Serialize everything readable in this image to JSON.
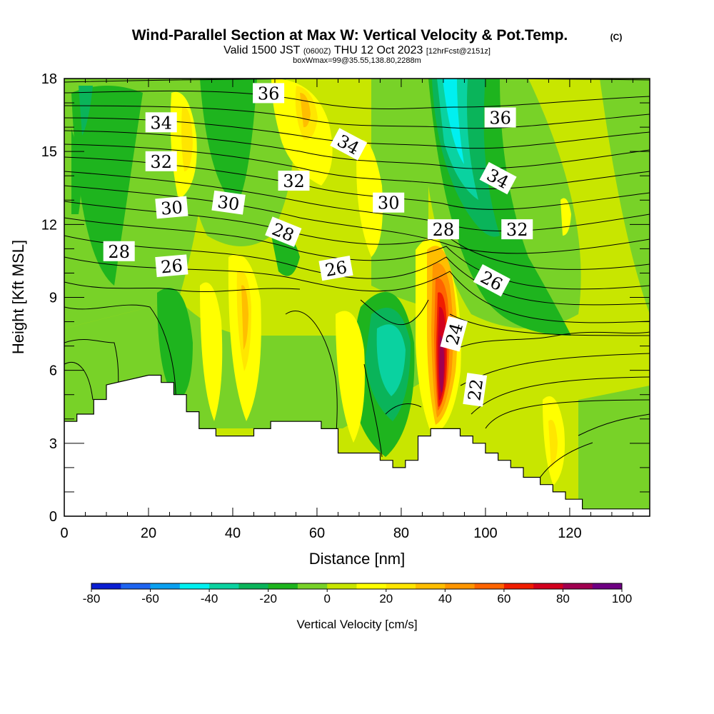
{
  "chart_data": {
    "type": "heatmap",
    "title": "Wind-Parallel Section at Max W: Vertical Velocity & Pot.Temp.",
    "title_mark": "(C)",
    "subtitle_main": "Valid 1500 JST",
    "subtitle_utc": "(0600Z)",
    "subtitle_date": "THU 12 Oct 2023",
    "subtitle_fcst": "[12hrFcst@2151z]",
    "subtitle2": "boxWmax=99@35.55,138.80,2288m",
    "xlabel": "Distance [nm]",
    "ylabel": "Height [Kft MSL]",
    "xlim": [
      0,
      139
    ],
    "ylim": [
      0,
      18
    ],
    "x_ticks": [
      "0",
      "20",
      "40",
      "60",
      "80",
      "100",
      "120"
    ],
    "y_ticks": [
      "0",
      "3",
      "6",
      "9",
      "12",
      "15",
      "18"
    ],
    "colorbar": {
      "label": "Vertical Velocity [cm/s]",
      "ticks": [
        "-80",
        "-60",
        "-40",
        "-20",
        "0",
        "20",
        "40",
        "60",
        "80",
        "100"
      ],
      "bins": [
        -80,
        -70,
        -60,
        -50,
        -40,
        -30,
        -20,
        -10,
        0,
        10,
        20,
        30,
        40,
        50,
        60,
        70,
        80,
        90,
        100
      ],
      "colors": [
        "#0a1ed2",
        "#1e64f0",
        "#0aa0f0",
        "#00f0f0",
        "#0ad2a0",
        "#0ab45a",
        "#1eb41e",
        "#78d228",
        "#c8e600",
        "#ffff00",
        "#ffe600",
        "#ffbe00",
        "#ff9600",
        "#ff6400",
        "#f01e00",
        "#d2001e",
        "#a00050",
        "#6e0082"
      ]
    },
    "contour_labels": [
      "34",
      "32",
      "30",
      "28",
      "26",
      "36",
      "30",
      "32",
      "28",
      "26",
      "34",
      "30",
      "28",
      "36",
      "34",
      "32",
      "26",
      "24",
      "22"
    ],
    "terrain": [
      [
        0,
        3.9
      ],
      [
        3,
        3.9
      ],
      [
        3,
        4.2
      ],
      [
        7,
        4.2
      ],
      [
        7,
        4.8
      ],
      [
        10,
        4.8
      ],
      [
        10,
        5.4
      ],
      [
        20,
        5.8
      ],
      [
        23,
        5.8
      ],
      [
        23,
        5.5
      ],
      [
        26,
        5.5
      ],
      [
        26,
        5.0
      ],
      [
        29,
        5.0
      ],
      [
        29,
        4.3
      ],
      [
        32,
        4.3
      ],
      [
        32,
        3.6
      ],
      [
        36,
        3.6
      ],
      [
        36,
        3.3
      ],
      [
        45,
        3.3
      ],
      [
        45,
        3.6
      ],
      [
        49,
        3.6
      ],
      [
        49,
        3.9
      ],
      [
        61,
        3.9
      ],
      [
        61,
        3.6
      ],
      [
        65,
        3.6
      ],
      [
        65,
        2.6
      ],
      [
        75,
        2.6
      ],
      [
        75,
        2.3
      ],
      [
        78,
        2.3
      ],
      [
        78,
        2.0
      ],
      [
        81,
        2.0
      ],
      [
        81,
        2.3
      ],
      [
        84,
        2.3
      ],
      [
        84,
        3.3
      ],
      [
        87,
        3.3
      ],
      [
        87,
        3.6
      ],
      [
        94,
        3.6
      ],
      [
        94,
        3.3
      ],
      [
        97,
        3.3
      ],
      [
        97,
        3.0
      ],
      [
        100,
        3.0
      ],
      [
        100,
        2.6
      ],
      [
        103,
        2.6
      ],
      [
        103,
        2.3
      ],
      [
        106,
        2.3
      ],
      [
        106,
        2.0
      ],
      [
        109,
        2.0
      ],
      [
        109,
        1.6
      ],
      [
        113,
        1.6
      ],
      [
        113,
        1.3
      ],
      [
        116,
        1.3
      ],
      [
        116,
        1.0
      ],
      [
        119,
        1.0
      ],
      [
        119,
        0.7
      ],
      [
        123,
        0.7
      ],
      [
        123,
        0.3
      ],
      [
        139,
        0.3
      ]
    ]
  }
}
